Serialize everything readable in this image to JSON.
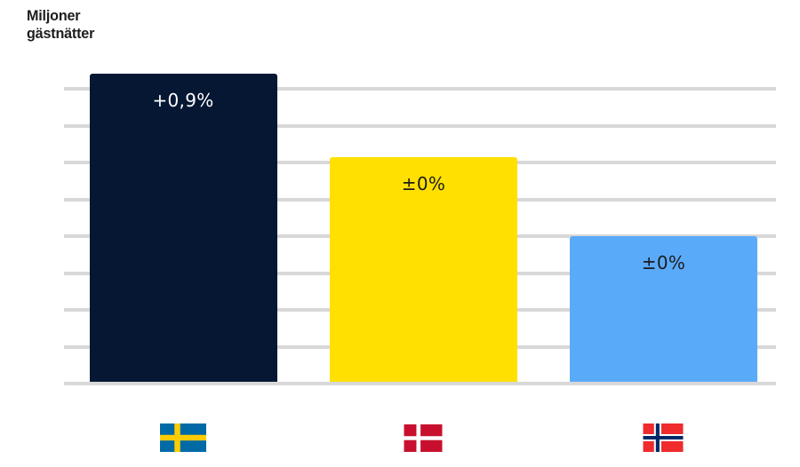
{
  "page": {
    "background": "#FFFFFF"
  },
  "chart_data": {
    "type": "bar",
    "title": "Miljoner gästnätter",
    "title_color": "#1D1D1B",
    "categories": [
      "Sverige",
      "Danmark",
      "Norge"
    ],
    "values_est_gridline_units": [
      8.35,
      6.1,
      3.95
    ],
    "data_labels": [
      "+0,9%",
      "±0%",
      "±0%"
    ],
    "bars": [
      {
        "id": "sweden",
        "category": "Sverige",
        "flag_icon": "sweden-flag",
        "value_gridline_units": 8.35,
        "data_label": "+0,9%",
        "bar_color": "#061733",
        "label_color": "#FFFFFF"
      },
      {
        "id": "denmark",
        "category": "Danmark",
        "flag_icon": "denmark-flag",
        "value_gridline_units": 6.1,
        "data_label": "±0%",
        "bar_color": "#FFE000",
        "label_color": "#1D1D1B"
      },
      {
        "id": "norway",
        "category": "Norge",
        "flag_icon": "norway-flag",
        "value_gridline_units": 3.95,
        "data_label": "±0%",
        "bar_color": "#5AAAFA",
        "label_color": "#1D1D1B"
      }
    ],
    "xlabel": "",
    "ylabel": "",
    "y_axis": {
      "tick_labels": "none",
      "gridline_count": 9,
      "gridline_color": "#D8D8D8",
      "range_gridline_units": [
        0,
        8
      ]
    },
    "legend": "none",
    "grid": "on"
  },
  "flags": {
    "sweden": {
      "field": "#006AA7",
      "cross": "#FECC02"
    },
    "denmark": {
      "field": "#C8102E",
      "cross": "#FFFFFF"
    },
    "norway": {
      "field": "#EF2B2D",
      "fimbriation": "#FFFFFF",
      "cross": "#002868"
    }
  }
}
